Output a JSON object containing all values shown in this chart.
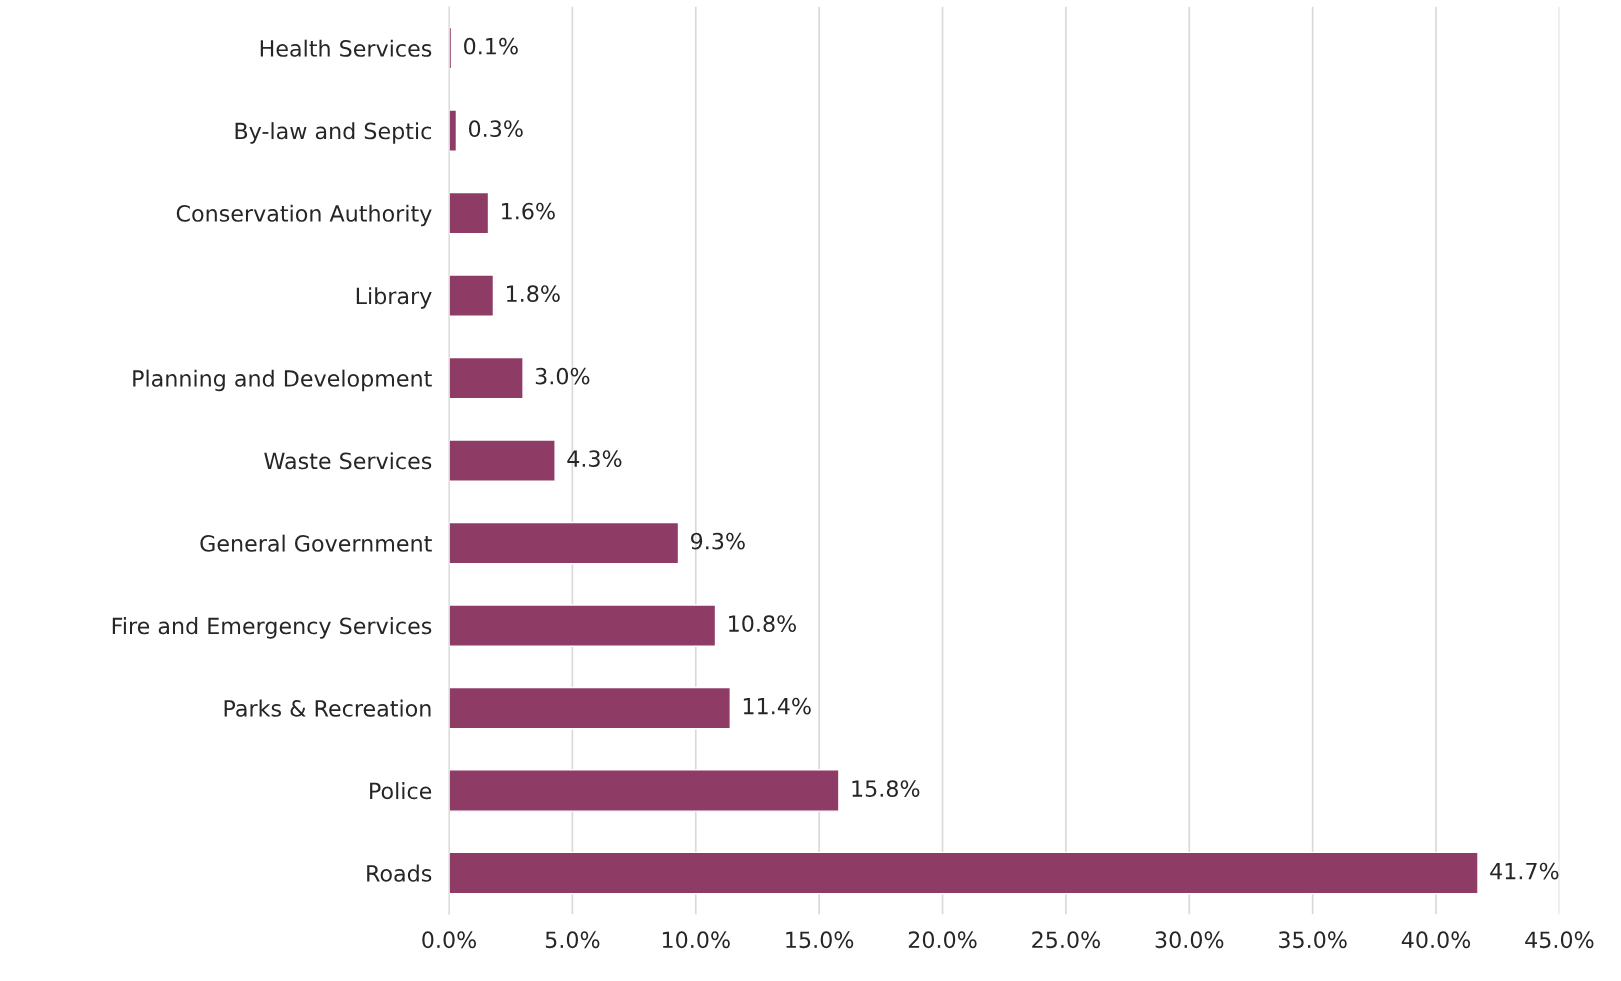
{
  "chart_data": {
    "type": "bar",
    "orientation": "horizontal",
    "categories": [
      "Health Services",
      "By-law and Septic",
      "Conservation Authority",
      "Library",
      "Planning and Development",
      "Waste Services",
      "General Government",
      "Fire and Emergency Services",
      "Parks & Recreation",
      "Police",
      "Roads"
    ],
    "values": [
      0.1,
      0.3,
      1.6,
      1.8,
      3.0,
      4.3,
      9.3,
      10.8,
      11.4,
      15.8,
      41.7
    ],
    "value_labels": [
      "0.1%",
      "0.3%",
      "1.6%",
      "1.8%",
      "3.0%",
      "4.3%",
      "9.3%",
      "10.8%",
      "11.4%",
      "15.8%",
      "41.7%"
    ],
    "color": "#8e3c65",
    "xlim": [
      0,
      45
    ],
    "xticks": [
      {
        "value": 0,
        "label": "0.0%"
      },
      {
        "value": 5,
        "label": "5.0%"
      },
      {
        "value": 10,
        "label": "10.0%"
      },
      {
        "value": 15,
        "label": "15.0%"
      },
      {
        "value": 20,
        "label": "20.0%"
      },
      {
        "value": 25,
        "label": "25.0%"
      },
      {
        "value": 30,
        "label": "30.0%"
      },
      {
        "value": 35,
        "label": "35.0%"
      },
      {
        "value": 40,
        "label": "40.0%"
      },
      {
        "value": 45,
        "label": "45.0%"
      }
    ],
    "grid": "x",
    "legend": false
  }
}
